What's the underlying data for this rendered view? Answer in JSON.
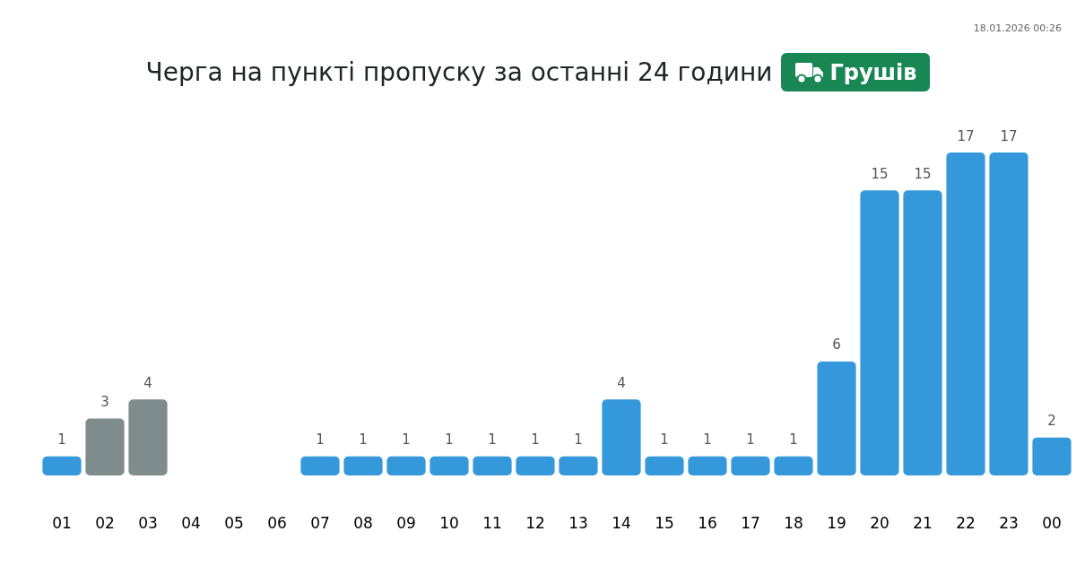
{
  "chart_data": {
    "type": "bar",
    "title": "Черга на пункті пропуску за останні 24 години",
    "subtitle": "Грушів",
    "annotations": [
      "18.01.2026 00:26"
    ],
    "categories": [
      "01",
      "02",
      "03",
      "04",
      "05",
      "06",
      "07",
      "08",
      "09",
      "10",
      "11",
      "12",
      "13",
      "14",
      "15",
      "16",
      "17",
      "18",
      "19",
      "20",
      "21",
      "22",
      "23",
      "00"
    ],
    "values": [
      1,
      3,
      4,
      null,
      null,
      null,
      1,
      1,
      1,
      1,
      1,
      1,
      1,
      4,
      1,
      1,
      1,
      1,
      6,
      15,
      15,
      17,
      17,
      2
    ],
    "colors": [
      "#3498db",
      "#7f8c8d",
      "#7f8c8d",
      "#3498db",
      "#3498db",
      "#3498db",
      "#3498db",
      "#3498db",
      "#3498db",
      "#3498db",
      "#3498db",
      "#3498db",
      "#3498db",
      "#3498db",
      "#3498db",
      "#3498db",
      "#3498db",
      "#3498db",
      "#3498db",
      "#3498db",
      "#3498db",
      "#3498db",
      "#3498db",
      "#3498db"
    ],
    "data_labels": true,
    "tick_labels": "x",
    "grid": false
  }
}
